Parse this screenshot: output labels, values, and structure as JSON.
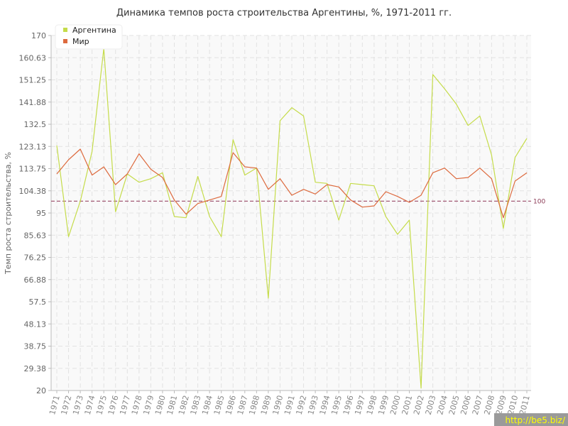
{
  "watermark": "http://be5.biz/",
  "colors": {
    "argentina": "#c5dc4a",
    "world": "#dd6a3e",
    "reference": "#9b4a68",
    "grid": "#e2e2e2",
    "plot_bg": "#f9f9f9"
  },
  "chart_data": {
    "type": "line",
    "title": "Динамика темпов роста строительства Аргентины, %, 1971-2011 гг.",
    "xlabel": "",
    "ylabel": "Темп роста строительства, %",
    "ylim": [
      20,
      170
    ],
    "yticks": [
      "20",
      "29.38",
      "38.75",
      "48.13",
      "57.5",
      "66.88",
      "76.25",
      "85.63",
      "95",
      "104.38",
      "113.75",
      "123.13",
      "132.5",
      "141.88",
      "151.25",
      "160.63",
      "170"
    ],
    "grid": true,
    "legend_position": "top-left",
    "reference_line": {
      "value": 100,
      "label": "100"
    },
    "x": [
      "1971",
      "1972",
      "1973",
      "1974",
      "1975",
      "1976",
      "1977",
      "1978",
      "1979",
      "1980",
      "1981",
      "1982",
      "1983",
      "1984",
      "1985",
      "1986",
      "1987",
      "1988",
      "1989",
      "1990",
      "1991",
      "1992",
      "1993",
      "1994",
      "1995",
      "1996",
      "1997",
      "1998",
      "1999",
      "2000",
      "2001",
      "2002",
      "2003",
      "2004",
      "2005",
      "2006",
      "2007",
      "2008",
      "2009",
      "2010",
      "2011"
    ],
    "series": [
      {
        "name": "Аргентина",
        "color": "#c5dc4a",
        "values": [
          123.5,
          85,
          100,
          121,
          164.5,
          95.5,
          111.5,
          108,
          109.5,
          112,
          93.5,
          93,
          110.5,
          93.5,
          85,
          126,
          111,
          114,
          59,
          134,
          139.5,
          136,
          108,
          107.5,
          92,
          107.5,
          107,
          106.5,
          93.5,
          86,
          92,
          21,
          153.5,
          147.5,
          141,
          132,
          136,
          119.5,
          88.5,
          118.5,
          126.5
        ]
      },
      {
        "name": "Мир",
        "color": "#dd6a3e",
        "values": [
          111.5,
          117.5,
          122,
          111,
          114.5,
          107,
          111.5,
          120,
          113.5,
          110,
          100.5,
          94.5,
          99,
          100.5,
          102,
          120.5,
          114.5,
          114,
          105,
          109.5,
          102.5,
          105,
          103,
          107,
          106,
          100.5,
          97.5,
          98,
          104,
          102,
          99.5,
          102.5,
          112,
          114,
          109.5,
          110,
          114,
          109.5,
          93,
          108.5,
          112
        ]
      }
    ]
  }
}
